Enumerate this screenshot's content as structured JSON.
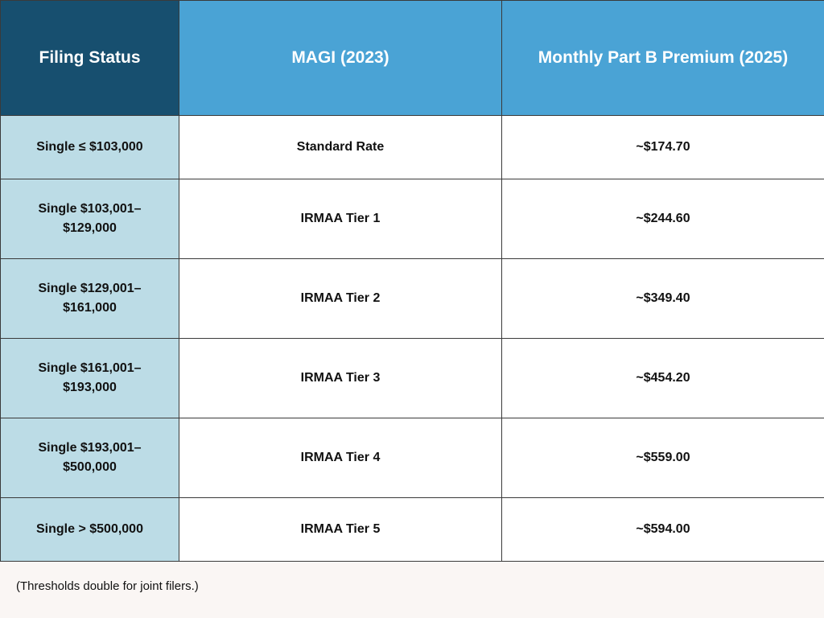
{
  "table": {
    "headers": [
      "Filing Status",
      "MAGI (2023)",
      "Monthly Part B Premium (2025)"
    ],
    "rows": [
      {
        "status": "Single ≤ $103,000",
        "magi": "Standard Rate",
        "premium": "~$174.70"
      },
      {
        "status": "Single $103,001–\n$129,000",
        "magi": "IRMAA Tier 1",
        "premium": "~$244.60"
      },
      {
        "status": "Single $129,001–\n$161,000",
        "magi": "IRMAA Tier 2",
        "premium": "~$349.40"
      },
      {
        "status": "Single $161,001–\n$193,000",
        "magi": "IRMAA Tier 3",
        "premium": "~$454.20"
      },
      {
        "status": "Single $193,001–\n$500,000",
        "magi": "IRMAA Tier 4",
        "premium": "~$559.00"
      },
      {
        "status": "Single > $500,000",
        "magi": "IRMAA Tier 5",
        "premium": "~$594.00"
      }
    ]
  },
  "footnote": "(Thresholds double for joint filers.)",
  "colors": {
    "header_dark": "#174f6f",
    "header_light": "#4aa3d5",
    "status_cell": "#bcdce6",
    "background": "#faf6f4"
  }
}
